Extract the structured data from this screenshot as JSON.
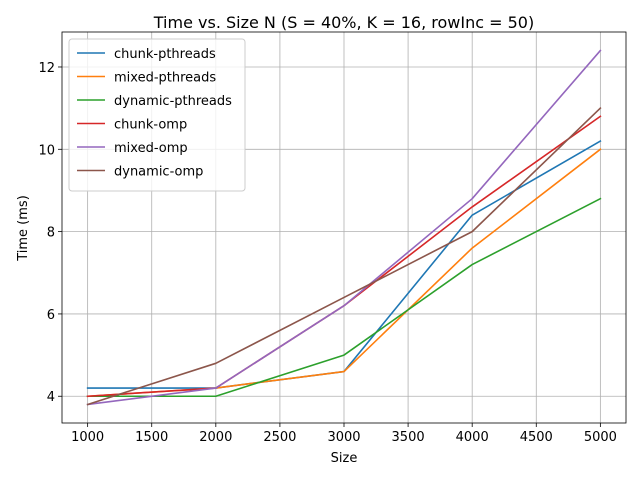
{
  "chart_data": {
    "type": "line",
    "title": "Time vs. Size N (S = 40%, K = 16, rowInc = 50)",
    "xlabel": "Size",
    "ylabel": "Time (ms)",
    "x": [
      1000,
      2000,
      3000,
      4000,
      5000
    ],
    "xlim": [
      800,
      5200
    ],
    "ylim": [
      3.35,
      12.85
    ],
    "xticks": [
      1000,
      1500,
      2000,
      2500,
      3000,
      3500,
      4000,
      4500,
      5000
    ],
    "yticks": [
      4,
      6,
      8,
      10,
      12
    ],
    "grid": true,
    "legend_position": "top-left",
    "series": [
      {
        "name": "chunk-pthreads",
        "color": "#1f77b4",
        "values": [
          4.2,
          4.2,
          4.6,
          8.4,
          10.2
        ]
      },
      {
        "name": "mixed-pthreads",
        "color": "#ff7f0e",
        "values": [
          4.0,
          4.2,
          4.6,
          7.6,
          10.0
        ]
      },
      {
        "name": "dynamic-pthreads",
        "color": "#2ca02c",
        "values": [
          4.0,
          4.0,
          5.0,
          7.2,
          8.8
        ]
      },
      {
        "name": "chunk-omp",
        "color": "#d62728",
        "values": [
          4.0,
          4.2,
          6.2,
          8.6,
          10.8
        ]
      },
      {
        "name": "mixed-omp",
        "color": "#9467bd",
        "values": [
          3.8,
          4.2,
          6.2,
          8.8,
          12.4
        ]
      },
      {
        "name": "dynamic-omp",
        "color": "#8c564b",
        "values": [
          3.8,
          4.8,
          6.4,
          8.0,
          11.0
        ]
      }
    ]
  }
}
